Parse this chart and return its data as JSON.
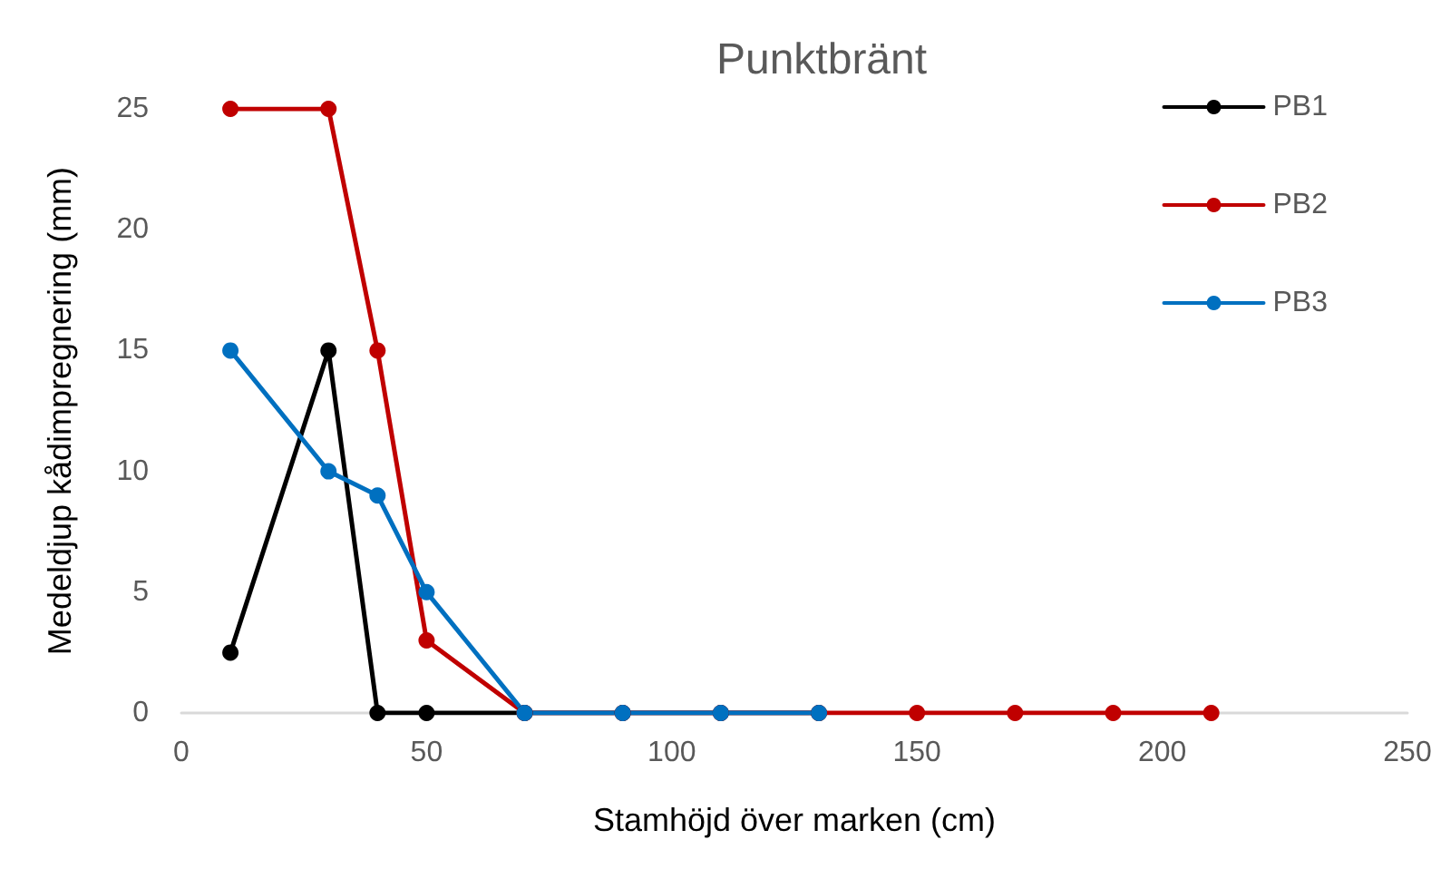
{
  "chart_data": {
    "type": "line",
    "title": "Punktbränt",
    "xlabel": "Stamhöjd över marken (cm)",
    "ylabel": "Medeldjup kådimpregnering (mm)",
    "series": [
      {
        "name": "PB1",
        "color": "#000000",
        "x": [
          10,
          30,
          40,
          50,
          70,
          90,
          110,
          130
        ],
        "values": [
          2.5,
          15,
          0,
          0,
          0,
          0,
          0,
          0
        ]
      },
      {
        "name": "PB2",
        "color": "#c00000",
        "x": [
          10,
          30,
          40,
          50,
          70,
          90,
          110,
          130,
          150,
          170,
          190,
          210
        ],
        "values": [
          25,
          25,
          15,
          3,
          0,
          0,
          0,
          0,
          0,
          0,
          0,
          0
        ]
      },
      {
        "name": "PB3",
        "color": "#0070c0",
        "x": [
          10,
          30,
          40,
          50,
          70,
          90,
          110,
          130
        ],
        "values": [
          15,
          10,
          9,
          5,
          0,
          0,
          0,
          0
        ]
      }
    ],
    "xlim": [
      0,
      250
    ],
    "xticks": [
      0,
      50,
      100,
      150,
      200,
      250
    ],
    "ylim": [
      0,
      25
    ],
    "yticks": [
      0,
      5,
      10,
      15,
      20,
      25
    ],
    "grid": false,
    "legend": "top right",
    "marker": "circle",
    "line_style": "solid"
  }
}
